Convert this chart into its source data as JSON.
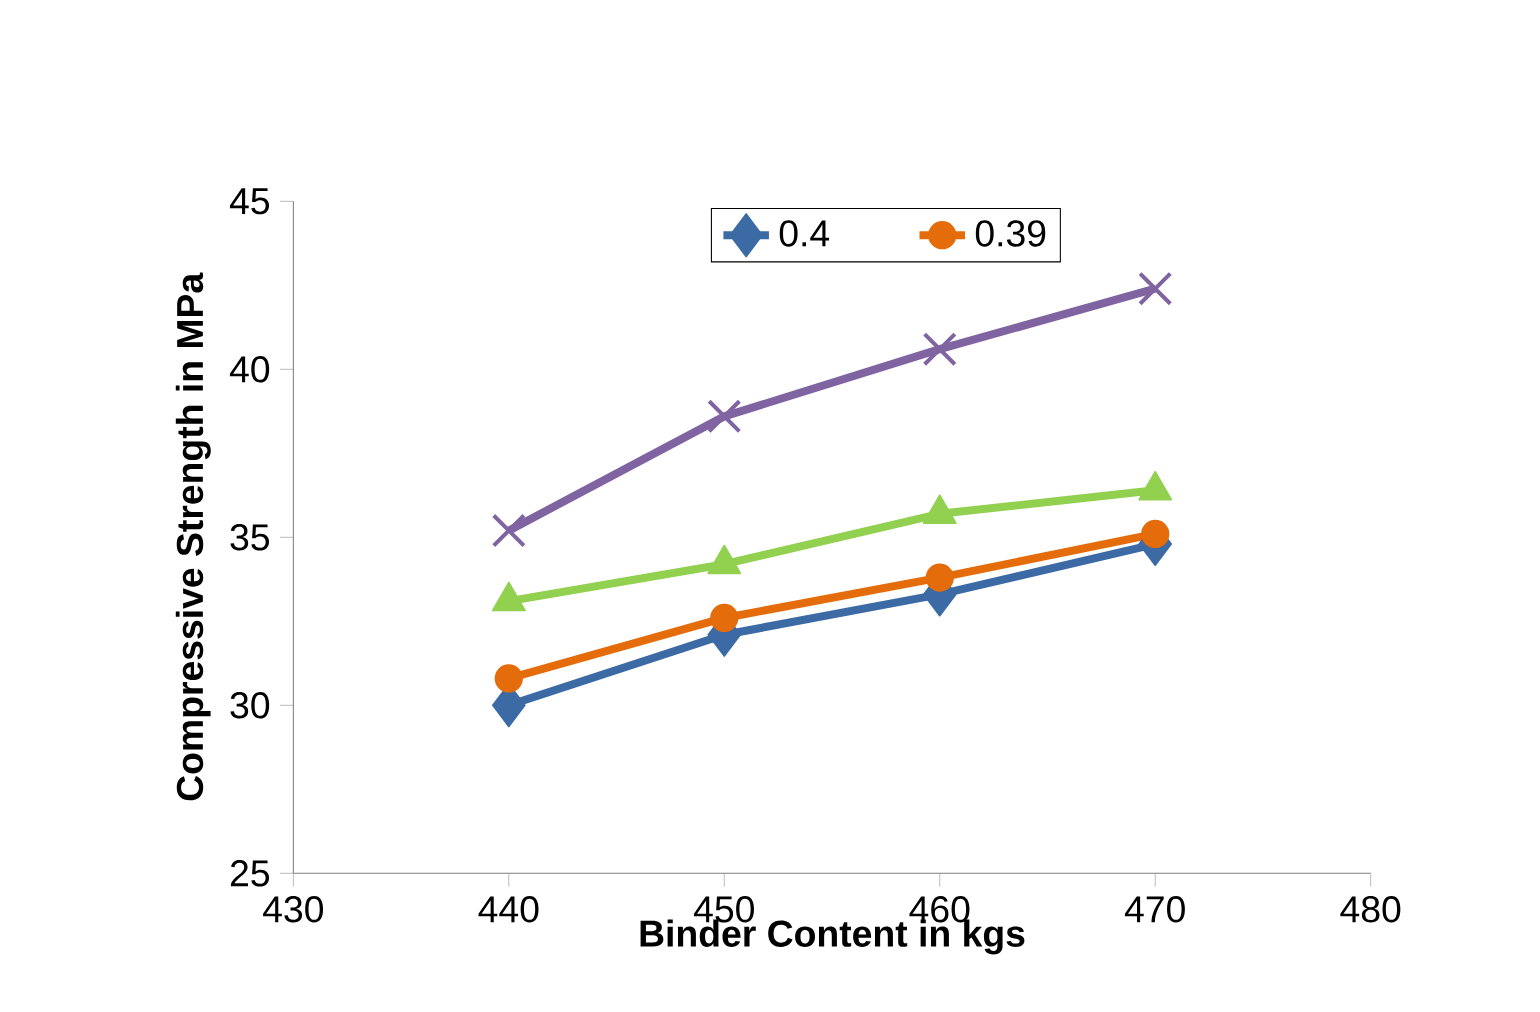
{
  "chart_data": {
    "type": "line",
    "xlabel": "Binder Content in kgs",
    "ylabel": "Compressive Strength in MPa",
    "x": [
      440,
      450,
      460,
      470
    ],
    "series": [
      {
        "name": "0.4",
        "color": "#3c6aa5",
        "marker": "diamond",
        "values": [
          30.0,
          32.1,
          33.3,
          34.8
        ]
      },
      {
        "name": "0.39",
        "color": "#e46c0a",
        "marker": "circle",
        "values": [
          30.8,
          32.6,
          33.8,
          35.1
        ]
      },
      {
        "color": "#92d050",
        "marker": "triangle",
        "values": [
          33.1,
          34.2,
          35.7,
          36.4
        ]
      },
      {
        "color": "#8064a2",
        "marker": "cross",
        "values": [
          35.2,
          38.6,
          40.6,
          42.4
        ]
      }
    ],
    "xlim": [
      430,
      480
    ],
    "xticks": [
      430,
      440,
      450,
      460,
      470,
      480
    ],
    "ylim": [
      25,
      45
    ],
    "yticks": [
      25,
      30,
      35,
      40,
      45
    ],
    "grid": false,
    "legend": "top",
    "line_style": "solid"
  }
}
